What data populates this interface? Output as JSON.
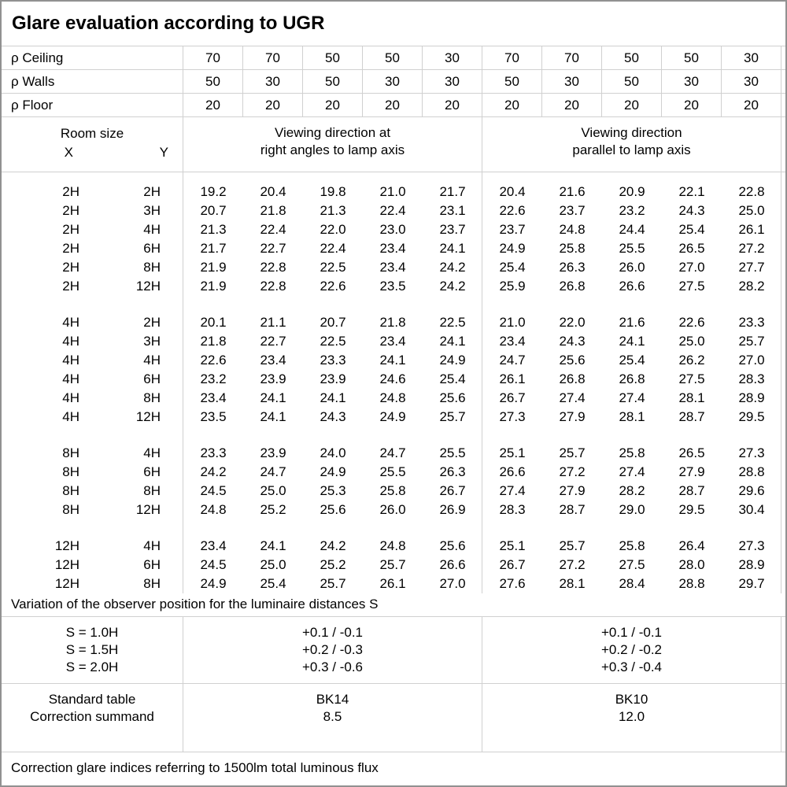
{
  "title": "Glare evaluation according to UGR",
  "colors": {
    "grid_line": "#d0d0d0",
    "outer_border": "#919191",
    "text": "#000000",
    "background": "#ffffff"
  },
  "reflectance": {
    "rows": [
      {
        "label": "ρ Ceiling",
        "values": [
          "70",
          "70",
          "50",
          "50",
          "30",
          "70",
          "70",
          "50",
          "50",
          "30"
        ]
      },
      {
        "label": "ρ Walls",
        "values": [
          "50",
          "30",
          "50",
          "30",
          "30",
          "50",
          "30",
          "50",
          "30",
          "30"
        ]
      },
      {
        "label": "ρ Floor",
        "values": [
          "20",
          "20",
          "20",
          "20",
          "20",
          "20",
          "20",
          "20",
          "20",
          "20"
        ]
      }
    ]
  },
  "header": {
    "room_size": "Room size",
    "x": "X",
    "y": "Y",
    "group_left": [
      "Viewing direction at",
      "right angles to lamp axis"
    ],
    "group_right": [
      "Viewing direction",
      "parallel to lamp axis"
    ]
  },
  "ugr_groups": [
    {
      "rows": [
        {
          "x": "2H",
          "y": "2H",
          "left": [
            "19.2",
            "20.4",
            "19.8",
            "21.0",
            "21.7"
          ],
          "right": [
            "20.4",
            "21.6",
            "20.9",
            "22.1",
            "22.8"
          ]
        },
        {
          "x": "2H",
          "y": "3H",
          "left": [
            "20.7",
            "21.8",
            "21.3",
            "22.4",
            "23.1"
          ],
          "right": [
            "22.6",
            "23.7",
            "23.2",
            "24.3",
            "25.0"
          ]
        },
        {
          "x": "2H",
          "y": "4H",
          "left": [
            "21.3",
            "22.4",
            "22.0",
            "23.0",
            "23.7"
          ],
          "right": [
            "23.7",
            "24.8",
            "24.4",
            "25.4",
            "26.1"
          ]
        },
        {
          "x": "2H",
          "y": "6H",
          "left": [
            "21.7",
            "22.7",
            "22.4",
            "23.4",
            "24.1"
          ],
          "right": [
            "24.9",
            "25.8",
            "25.5",
            "26.5",
            "27.2"
          ]
        },
        {
          "x": "2H",
          "y": "8H",
          "left": [
            "21.9",
            "22.8",
            "22.5",
            "23.4",
            "24.2"
          ],
          "right": [
            "25.4",
            "26.3",
            "26.0",
            "27.0",
            "27.7"
          ]
        },
        {
          "x": "2H",
          "y": "12H",
          "left": [
            "21.9",
            "22.8",
            "22.6",
            "23.5",
            "24.2"
          ],
          "right": [
            "25.9",
            "26.8",
            "26.6",
            "27.5",
            "28.2"
          ]
        }
      ]
    },
    {
      "rows": [
        {
          "x": "4H",
          "y": "2H",
          "left": [
            "20.1",
            "21.1",
            "20.7",
            "21.8",
            "22.5"
          ],
          "right": [
            "21.0",
            "22.0",
            "21.6",
            "22.6",
            "23.3"
          ]
        },
        {
          "x": "4H",
          "y": "3H",
          "left": [
            "21.8",
            "22.7",
            "22.5",
            "23.4",
            "24.1"
          ],
          "right": [
            "23.4",
            "24.3",
            "24.1",
            "25.0",
            "25.7"
          ]
        },
        {
          "x": "4H",
          "y": "4H",
          "left": [
            "22.6",
            "23.4",
            "23.3",
            "24.1",
            "24.9"
          ],
          "right": [
            "24.7",
            "25.6",
            "25.4",
            "26.2",
            "27.0"
          ]
        },
        {
          "x": "4H",
          "y": "6H",
          "left": [
            "23.2",
            "23.9",
            "23.9",
            "24.6",
            "25.4"
          ],
          "right": [
            "26.1",
            "26.8",
            "26.8",
            "27.5",
            "28.3"
          ]
        },
        {
          "x": "4H",
          "y": "8H",
          "left": [
            "23.4",
            "24.1",
            "24.1",
            "24.8",
            "25.6"
          ],
          "right": [
            "26.7",
            "27.4",
            "27.4",
            "28.1",
            "28.9"
          ]
        },
        {
          "x": "4H",
          "y": "12H",
          "left": [
            "23.5",
            "24.1",
            "24.3",
            "24.9",
            "25.7"
          ],
          "right": [
            "27.3",
            "27.9",
            "28.1",
            "28.7",
            "29.5"
          ]
        }
      ]
    },
    {
      "rows": [
        {
          "x": "8H",
          "y": "4H",
          "left": [
            "23.3",
            "23.9",
            "24.0",
            "24.7",
            "25.5"
          ],
          "right": [
            "25.1",
            "25.7",
            "25.8",
            "26.5",
            "27.3"
          ]
        },
        {
          "x": "8H",
          "y": "6H",
          "left": [
            "24.2",
            "24.7",
            "24.9",
            "25.5",
            "26.3"
          ],
          "right": [
            "26.6",
            "27.2",
            "27.4",
            "27.9",
            "28.8"
          ]
        },
        {
          "x": "8H",
          "y": "8H",
          "left": [
            "24.5",
            "25.0",
            "25.3",
            "25.8",
            "26.7"
          ],
          "right": [
            "27.4",
            "27.9",
            "28.2",
            "28.7",
            "29.6"
          ]
        },
        {
          "x": "8H",
          "y": "12H",
          "left": [
            "24.8",
            "25.2",
            "25.6",
            "26.0",
            "26.9"
          ],
          "right": [
            "28.3",
            "28.7",
            "29.0",
            "29.5",
            "30.4"
          ]
        }
      ]
    },
    {
      "rows": [
        {
          "x": "12H",
          "y": "4H",
          "left": [
            "23.4",
            "24.1",
            "24.2",
            "24.8",
            "25.6"
          ],
          "right": [
            "25.1",
            "25.7",
            "25.8",
            "26.4",
            "27.3"
          ]
        },
        {
          "x": "12H",
          "y": "6H",
          "left": [
            "24.5",
            "25.0",
            "25.2",
            "25.7",
            "26.6"
          ],
          "right": [
            "26.7",
            "27.2",
            "27.5",
            "28.0",
            "28.9"
          ]
        },
        {
          "x": "12H",
          "y": "8H",
          "left": [
            "24.9",
            "25.4",
            "25.7",
            "26.1",
            "27.0"
          ],
          "right": [
            "27.6",
            "28.1",
            "28.4",
            "28.8",
            "29.7"
          ]
        }
      ]
    }
  ],
  "variation_note": "Variation of the observer position for the luminaire distances S",
  "s_variation": {
    "labels": [
      "S = 1.0H",
      "S = 1.5H",
      "S = 2.0H"
    ],
    "left": [
      "+0.1 / -0.1",
      "+0.2 / -0.3",
      "+0.3 / -0.6"
    ],
    "right": [
      "+0.1 / -0.1",
      "+0.2 / -0.2",
      "+0.3 / -0.4"
    ]
  },
  "standard": {
    "labels": [
      "Standard table",
      "Correction summand"
    ],
    "left": [
      "BK14",
      "8.5"
    ],
    "right": [
      "BK10",
      "12.0"
    ]
  },
  "footer_note": "Correction glare indices referring to 1500lm total luminous flux"
}
